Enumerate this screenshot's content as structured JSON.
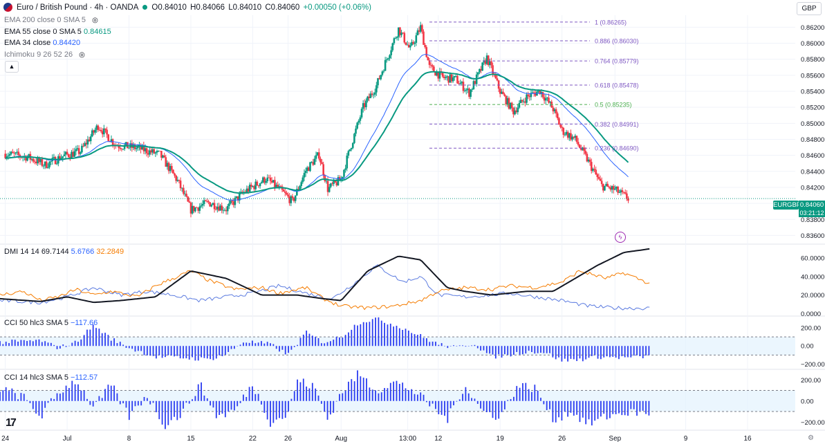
{
  "header": {
    "symbol_title": "Euro / British Pound · 4h · OANDA",
    "ohlc": {
      "open": "O0.84010",
      "high": "H0.84066",
      "low": "L0.84010",
      "close": "C0.84060",
      "change": "+0.00050 (+0.06%)"
    },
    "currency_button": "GBP",
    "collapse_icon": "chevron-up-icon"
  },
  "indicators": {
    "ema200": {
      "label": "EMA 200 close 0 SMA 5",
      "value": ""
    },
    "ema55": {
      "label": "EMA 55 close 0 SMA 5",
      "value": "0.84615"
    },
    "ema34": {
      "label": "EMA 34 close",
      "value": "0.84420"
    },
    "ichimoku": {
      "label": "Ichimoku 9 26 52 26",
      "value": ""
    },
    "dmi": {
      "label": "DMI 14 14",
      "adx": "69.7144",
      "minus_di": "5.6766",
      "plus_di": "32.2849"
    },
    "cci50": {
      "label": "CCI 50 hlc3 SMA 5",
      "value": "−117.66"
    },
    "cci14": {
      "label": "CCI 14 hlc3 SMA 5",
      "value": "−112.57"
    }
  },
  "price_tags": {
    "symbol": "EURGBP",
    "price": "0.84060",
    "countdown": "03:21:12"
  },
  "colors": {
    "up": "#089981",
    "down": "#f23645",
    "ema55": "#089981",
    "ema34": "#2962ff",
    "fib": "#7e57c2",
    "fib_half": "#4caf50",
    "adx": "#131722",
    "plus_di": "#f57c00",
    "minus_di": "#5b7be0",
    "cci_bar": "#2b3cf0",
    "band": "#e3f2fd"
  },
  "chart_data": [
    {
      "type": "candlestick",
      "title": "Euro / British Pound · 4h · OANDA",
      "ylim": [
        0.835,
        0.8635
      ],
      "y_ticks": [
        0.836,
        0.838,
        0.84,
        0.842,
        0.844,
        0.846,
        0.848,
        0.85,
        0.852,
        0.854,
        0.856,
        0.858,
        0.86,
        0.862
      ],
      "y_tick_labels": [
        "0.83600",
        "0.83800",
        "0.84000",
        "0.84200",
        "0.84400",
        "0.84600",
        "0.84800",
        "0.85000",
        "0.85200",
        "0.85400",
        "0.85600",
        "0.85800",
        "0.86000",
        "0.86200"
      ],
      "x_tick_labels": [
        "24",
        "Jul",
        "8",
        "15",
        "22",
        "26",
        "Aug",
        "13:00",
        "12",
        "19",
        "26",
        "Sep",
        "9",
        "16"
      ],
      "x_tick_days": [
        -7,
        0,
        7,
        14,
        21,
        25,
        31,
        38.54,
        42,
        49,
        56,
        62,
        70,
        77
      ],
      "day_range": [
        -7.6,
        82.4
      ],
      "last_price": 0.8406,
      "anchors": [
        [
          -7.0,
          0.8462
        ],
        [
          -4.5,
          0.8458
        ],
        [
          -2.5,
          0.8448
        ],
        [
          -0.5,
          0.8459
        ],
        [
          1.5,
          0.8465
        ],
        [
          3.5,
          0.8497
        ],
        [
          5.5,
          0.8473
        ],
        [
          8.0,
          0.8469
        ],
        [
          10.5,
          0.8461
        ],
        [
          12.5,
          0.8428
        ],
        [
          14.0,
          0.8392
        ],
        [
          16.0,
          0.8401
        ],
        [
          18.0,
          0.8393
        ],
        [
          20.0,
          0.8414
        ],
        [
          22.5,
          0.8431
        ],
        [
          24.0,
          0.8418
        ],
        [
          25.5,
          0.8402
        ],
        [
          27.0,
          0.8441
        ],
        [
          28.5,
          0.8461
        ],
        [
          29.5,
          0.8418
        ],
        [
          31.0,
          0.843
        ],
        [
          32.0,
          0.8468
        ],
        [
          33.5,
          0.852
        ],
        [
          35.0,
          0.8547
        ],
        [
          36.5,
          0.859
        ],
        [
          37.5,
          0.8618
        ],
        [
          38.8,
          0.8592
        ],
        [
          40.0,
          0.862
        ],
        [
          41.0,
          0.857
        ],
        [
          42.5,
          0.8557
        ],
        [
          44.0,
          0.8555
        ],
        [
          45.5,
          0.8538
        ],
        [
          47.5,
          0.8582
        ],
        [
          49.0,
          0.854
        ],
        [
          50.5,
          0.8515
        ],
        [
          52.0,
          0.8533
        ],
        [
          53.5,
          0.8541
        ],
        [
          55.0,
          0.8518
        ],
        [
          56.0,
          0.8491
        ],
        [
          57.5,
          0.848
        ],
        [
          59.0,
          0.8452
        ],
        [
          60.5,
          0.8422
        ],
        [
          62.0,
          0.8417
        ],
        [
          63.5,
          0.8406
        ]
      ],
      "fib_levels": [
        {
          "ratio": "1",
          "price": 0.86265,
          "label": "1 (0.86265)"
        },
        {
          "ratio": "0.886",
          "price": 0.8603,
          "label": "0.886 (0.86030)"
        },
        {
          "ratio": "0.764",
          "price": 0.85779,
          "label": "0.764 (0.85779)"
        },
        {
          "ratio": "0.618",
          "price": 0.85478,
          "label": "0.618 (0.85478)"
        },
        {
          "ratio": "0.5",
          "price": 0.85235,
          "label": "0.5 (0.85235)"
        },
        {
          "ratio": "0.382",
          "price": 0.84991,
          "label": "0.382 (0.84991)"
        },
        {
          "ratio": "0.236",
          "price": 0.8469,
          "label": "0.236 (0.84690)"
        }
      ],
      "fib_day_start": 41.0
    },
    {
      "type": "line",
      "title": "DMI 14 14",
      "ylim": [
        -2,
        75
      ],
      "y_ticks": [
        0,
        20,
        40,
        60
      ],
      "y_tick_labels": [
        "0.0000",
        "20.0000",
        "40.0000",
        "60.0000"
      ],
      "series": [
        {
          "name": "ADX",
          "points": [
            [
              -7.6,
              16
            ],
            [
              -3,
              13
            ],
            [
              0,
              18
            ],
            [
              3,
              12
            ],
            [
              6,
              14
            ],
            [
              10,
              18
            ],
            [
              14,
              46
            ],
            [
              18,
              38
            ],
            [
              22,
              20
            ],
            [
              26,
              20
            ],
            [
              29,
              16
            ],
            [
              31,
              14
            ],
            [
              34,
              46
            ],
            [
              37.5,
              62
            ],
            [
              40,
              58
            ],
            [
              43,
              28
            ],
            [
              45,
              24
            ],
            [
              48,
              20
            ],
            [
              52,
              24
            ],
            [
              55,
              24
            ],
            [
              60,
              52
            ],
            [
              63,
              66
            ],
            [
              66,
              70
            ]
          ]
        },
        {
          "name": "+DI",
          "points": [
            [
              -7.6,
              20
            ],
            [
              -5,
              24
            ],
            [
              -3,
              14
            ],
            [
              -1,
              18
            ],
            [
              1,
              26
            ],
            [
              3,
              20
            ],
            [
              5,
              24
            ],
            [
              8,
              18
            ],
            [
              10,
              30
            ],
            [
              12,
              38
            ],
            [
              14,
              46
            ],
            [
              16,
              36
            ],
            [
              19,
              26
            ],
            [
              22,
              28
            ],
            [
              24,
              22
            ],
            [
              27,
              28
            ],
            [
              29,
              16
            ],
            [
              31,
              8
            ],
            [
              34,
              6
            ],
            [
              37,
              8
            ],
            [
              40,
              14
            ],
            [
              42,
              24
            ],
            [
              45,
              28
            ],
            [
              48,
              26
            ],
            [
              50,
              30
            ],
            [
              53,
              28
            ],
            [
              56,
              34
            ],
            [
              58,
              46
            ],
            [
              61,
              38
            ],
            [
              63,
              44
            ],
            [
              66,
              32
            ]
          ]
        },
        {
          "name": "-DI",
          "points": [
            [
              -7.6,
              14
            ],
            [
              -3,
              12
            ],
            [
              0,
              18
            ],
            [
              3,
              28
            ],
            [
              6,
              20
            ],
            [
              9,
              24
            ],
            [
              12,
              20
            ],
            [
              15,
              14
            ],
            [
              18,
              18
            ],
            [
              21,
              22
            ],
            [
              24,
              30
            ],
            [
              27,
              22
            ],
            [
              30,
              16
            ],
            [
              33,
              36
            ],
            [
              35,
              52
            ],
            [
              38,
              34
            ],
            [
              40,
              40
            ],
            [
              42,
              20
            ],
            [
              45,
              18
            ],
            [
              48,
              20
            ],
            [
              50,
              22
            ],
            [
              53,
              18
            ],
            [
              56,
              14
            ],
            [
              59,
              8
            ],
            [
              62,
              6
            ],
            [
              66,
              5.6766
            ]
          ]
        }
      ]
    },
    {
      "type": "bar",
      "title": "CCI 50 hlc3 SMA 5",
      "ylim": [
        -250,
        330
      ],
      "y_ticks": [
        -200,
        0,
        200
      ],
      "y_tick_labels": [
        "−200.00",
        "0.00",
        "200.00"
      ],
      "band": [
        -100,
        100
      ],
      "anchors": [
        [
          -7.6,
          40
        ],
        [
          -3,
          60
        ],
        [
          -1,
          -20
        ],
        [
          1,
          40
        ],
        [
          3,
          230
        ],
        [
          5,
          80
        ],
        [
          7,
          -20
        ],
        [
          10,
          -120
        ],
        [
          13,
          -130
        ],
        [
          16,
          -150
        ],
        [
          18,
          -90
        ],
        [
          20,
          50
        ],
        [
          23,
          20
        ],
        [
          25,
          -100
        ],
        [
          27,
          150
        ],
        [
          29,
          40
        ],
        [
          31,
          100
        ],
        [
          33,
          260
        ],
        [
          35,
          300
        ],
        [
          38,
          200
        ],
        [
          40,
          110
        ],
        [
          42,
          20
        ],
        [
          44,
          -20
        ],
        [
          46,
          30
        ],
        [
          48,
          -120
        ],
        [
          50,
          -100
        ],
        [
          52,
          -60
        ],
        [
          54,
          -70
        ],
        [
          56,
          -160
        ],
        [
          58,
          -150
        ],
        [
          60,
          -120
        ],
        [
          63,
          -130
        ],
        [
          66,
          -117.66
        ]
      ]
    },
    {
      "type": "bar",
      "title": "CCI 14 hlc3 SMA 5",
      "ylim": [
        -270,
        300
      ],
      "y_ticks": [
        -200,
        0,
        200
      ],
      "y_tick_labels": [
        "−200.00",
        "0.00",
        "200.00"
      ],
      "band": [
        -100,
        100
      ],
      "anchors": [
        [
          -7.6,
          120
        ],
        [
          -5,
          40
        ],
        [
          -3,
          -150
        ],
        [
          -1,
          80
        ],
        [
          1,
          200
        ],
        [
          3,
          -60
        ],
        [
          5,
          150
        ],
        [
          7,
          -150
        ],
        [
          9,
          60
        ],
        [
          11,
          -230
        ],
        [
          13,
          -120
        ],
        [
          15,
          160
        ],
        [
          17,
          -150
        ],
        [
          19,
          -90
        ],
        [
          21,
          160
        ],
        [
          23,
          -200
        ],
        [
          25,
          -130
        ],
        [
          26,
          200
        ],
        [
          28,
          130
        ],
        [
          29.5,
          -180
        ],
        [
          31,
          80
        ],
        [
          33,
          260
        ],
        [
          35,
          100
        ],
        [
          37,
          180
        ],
        [
          39,
          110
        ],
        [
          41,
          -30
        ],
        [
          43,
          -180
        ],
        [
          45,
          150
        ],
        [
          47,
          -100
        ],
        [
          49,
          -150
        ],
        [
          51,
          150
        ],
        [
          53,
          120
        ],
        [
          55,
          -180
        ],
        [
          57,
          -100
        ],
        [
          59,
          -220
        ],
        [
          61,
          -150
        ],
        [
          63,
          -110
        ],
        [
          66,
          -112.57
        ]
      ]
    }
  ]
}
